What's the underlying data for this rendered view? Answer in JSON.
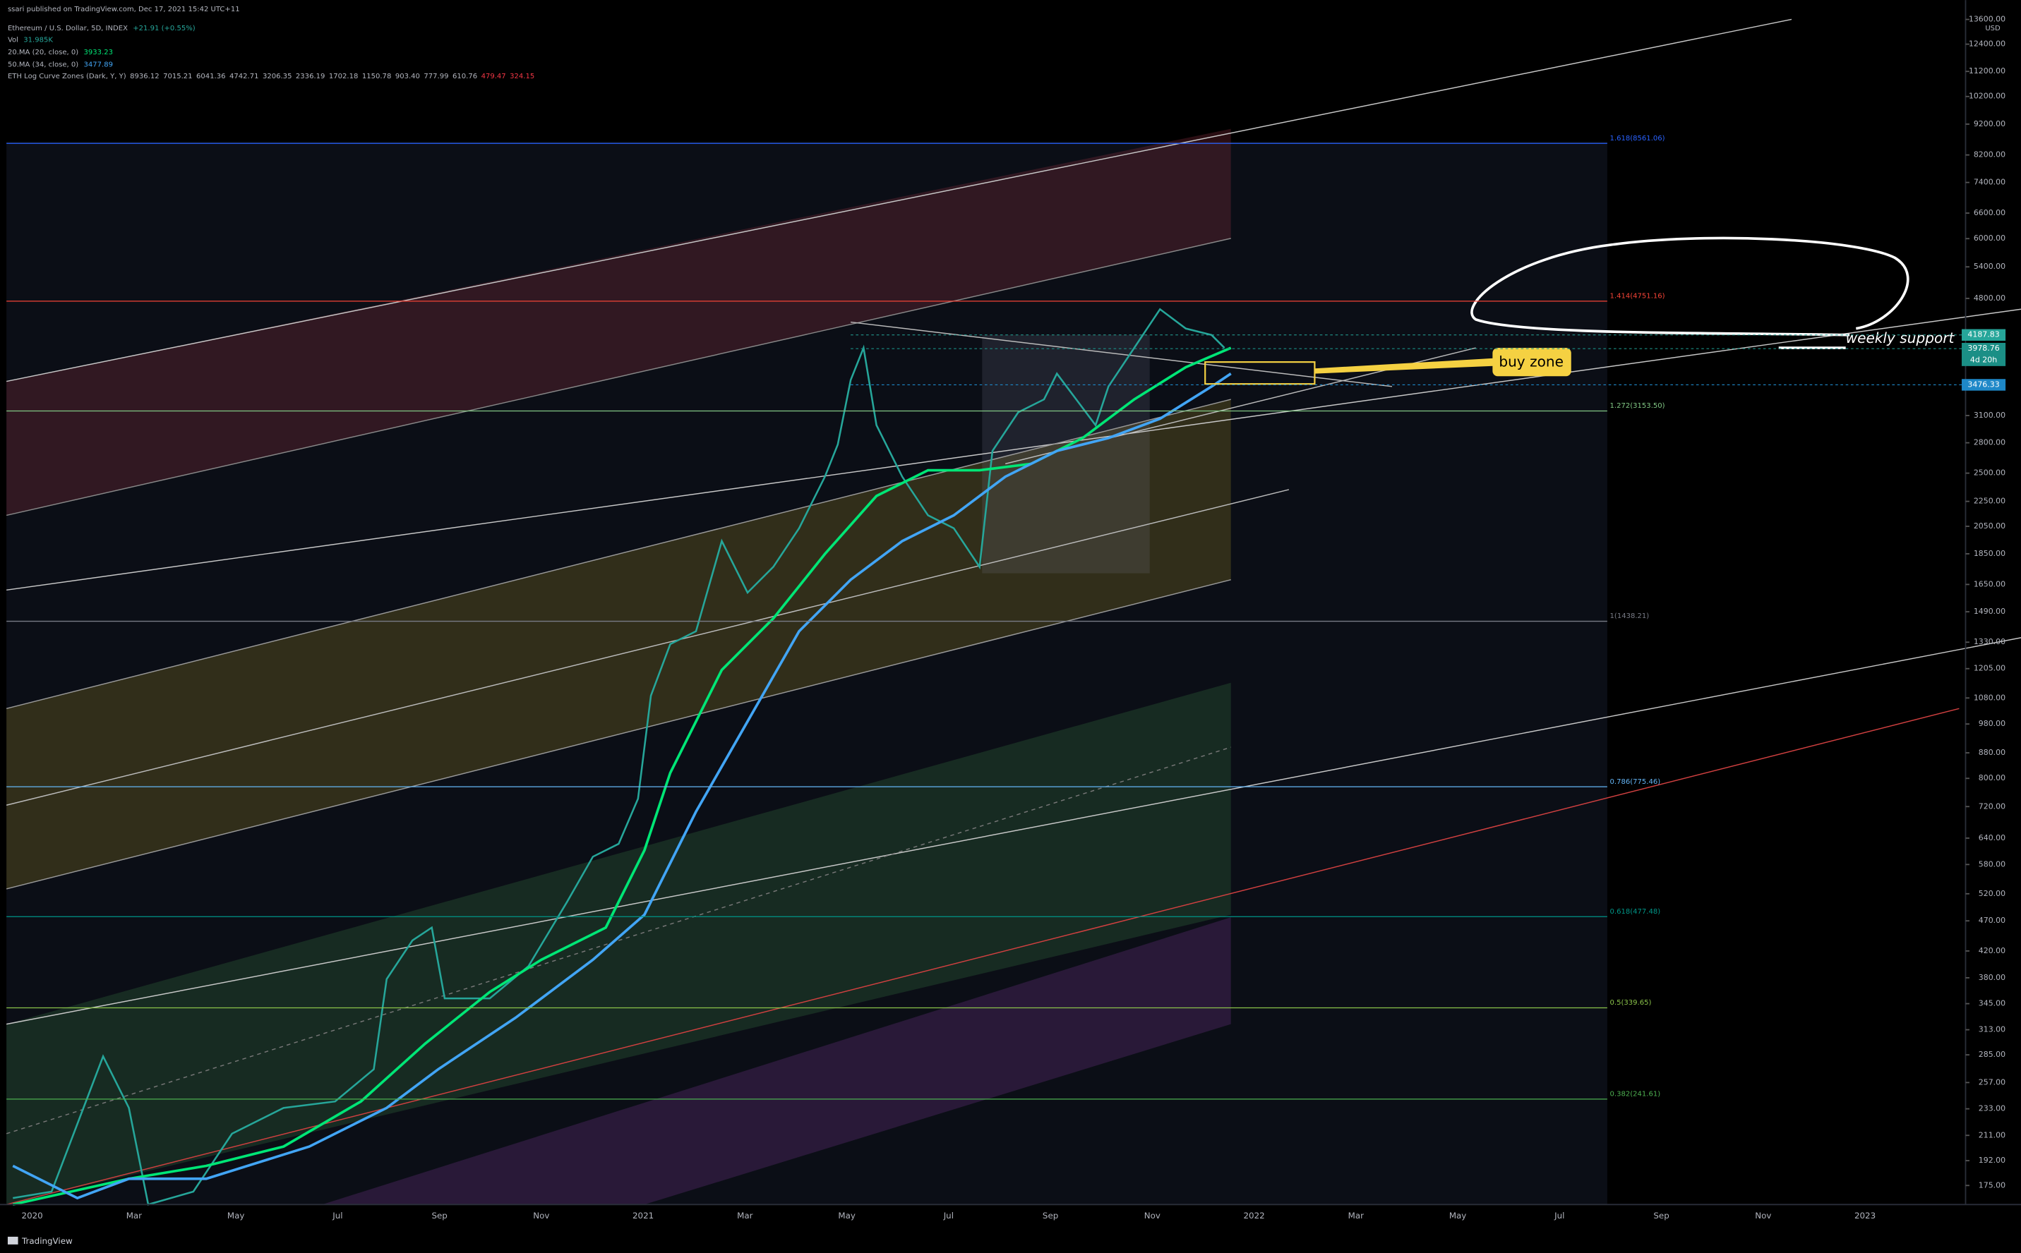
{
  "header": {
    "published": "ssari published on TradingView.com, Dec 17, 2021 15:42 UTC+11",
    "symbol": "Ethereum / U.S. Dollar, 5D, INDEX",
    "change": "+21.91 (+0.55%)",
    "indicators": [
      {
        "name": "Vol",
        "value": "31.985K",
        "color": "#26a69a"
      },
      {
        "name": "20.MA (20, close, 0)",
        "value": "3933.23",
        "color": "#00e676"
      },
      {
        "name": "50.MA (34, close, 0)",
        "value": "3477.89",
        "color": "#42a5f5"
      }
    ],
    "curve_zones": {
      "name": "ETH Log Curve Zones (Dark, Y, Y)",
      "values": [
        "8936.12",
        "7015.21",
        "6041.36",
        "4742.71",
        "3206.35",
        "2336.19",
        "1702.18",
        "1150.78",
        "903.40",
        "777.99",
        "610.76"
      ],
      "red_values": [
        "479.47",
        "324.15"
      ]
    }
  },
  "price_axis": {
    "currency": "USD",
    "log": true,
    "ylim": [
      163,
      14620
    ],
    "ticks": [
      {
        "value": 13600,
        "label": "13600.00"
      },
      {
        "value": 12400,
        "label": "12400.00"
      },
      {
        "value": 11200,
        "label": "11200.00"
      },
      {
        "value": 10200,
        "label": "10200.00"
      },
      {
        "value": 9200,
        "label": "9200.00"
      },
      {
        "value": 8200,
        "label": "8200.00"
      },
      {
        "value": 7400,
        "label": "7400.00"
      },
      {
        "value": 6600,
        "label": "6600.00"
      },
      {
        "value": 6000,
        "label": "6000.00"
      },
      {
        "value": 5400,
        "label": "5400.00"
      },
      {
        "value": 4800,
        "label": "4800.00"
      },
      {
        "value": 3100,
        "label": "3100.00"
      },
      {
        "value": 2800,
        "label": "2800.00"
      },
      {
        "value": 2500,
        "label": "2500.00"
      },
      {
        "value": 2250,
        "label": "2250.00"
      },
      {
        "value": 2050,
        "label": "2050.00"
      },
      {
        "value": 1850,
        "label": "1850.00"
      },
      {
        "value": 1650,
        "label": "1650.00"
      },
      {
        "value": 1490,
        "label": "1490.00"
      },
      {
        "value": 1330,
        "label": "1330.00"
      },
      {
        "value": 1205,
        "label": "1205.00"
      },
      {
        "value": 1080,
        "label": "1080.00"
      },
      {
        "value": 980,
        "label": "980.00"
      },
      {
        "value": 880,
        "label": "880.00"
      },
      {
        "value": 800,
        "label": "800.00"
      },
      {
        "value": 720,
        "label": "720.00"
      },
      {
        "value": 640,
        "label": "640.00"
      },
      {
        "value": 580,
        "label": "580.00"
      },
      {
        "value": 520,
        "label": "520.00"
      },
      {
        "value": 470,
        "label": "470.00"
      },
      {
        "value": 420,
        "label": "420.00"
      },
      {
        "value": 380,
        "label": "380.00"
      },
      {
        "value": 345,
        "label": "345.00"
      },
      {
        "value": 313,
        "label": "313.00"
      },
      {
        "value": 285,
        "label": "285.00"
      },
      {
        "value": 257,
        "label": "257.00"
      },
      {
        "value": 233,
        "label": "233.00"
      },
      {
        "value": 211,
        "label": "211.00"
      },
      {
        "value": 192,
        "label": "192.00"
      },
      {
        "value": 175,
        "label": "175.00"
      }
    ],
    "price_tags": [
      {
        "value": 4187.83,
        "label": "4187.83",
        "color": "#26a69a"
      },
      {
        "value": 3978.76,
        "label": "3978.76",
        "color": "#1b8f86",
        "countdown": "4d 20h"
      },
      {
        "value": 3476.33,
        "label": "3476.33",
        "color": "#1e88c8"
      }
    ]
  },
  "time_axis": [
    "2020",
    "Mar",
    "May",
    "Jul",
    "Sep",
    "Nov",
    "2021",
    "Mar",
    "May",
    "Jul",
    "Sep",
    "Nov",
    "2022",
    "Mar",
    "May",
    "Jul",
    "Sep",
    "Nov",
    "2023"
  ],
  "fib_levels": [
    {
      "value": 8561.06,
      "label": "1.618(8561.06)",
      "color": "#2962ff"
    },
    {
      "value": 4751.16,
      "label": "1.414(4751.16)",
      "color": "#f44336"
    },
    {
      "value": 3153.5,
      "label": "1.272(3153.50)",
      "color": "#81c784"
    },
    {
      "value": 1438.21,
      "label": "1(1438.21)",
      "color": "#787b86"
    },
    {
      "value": 775.46,
      "label": "0.786(775.46)",
      "color": "#64b5f6"
    },
    {
      "value": 477.48,
      "label": "0.618(477.48)",
      "color": "#009688"
    },
    {
      "value": 339.65,
      "label": "0.5(339.65)",
      "color": "#8bc34a"
    },
    {
      "value": 241.61,
      "label": "0.382(241.61)",
      "color": "#4caf50"
    }
  ],
  "annotations": {
    "weekly_support": "weekly support",
    "buy_zone": "buy zone"
  },
  "footer": "TradingView"
}
